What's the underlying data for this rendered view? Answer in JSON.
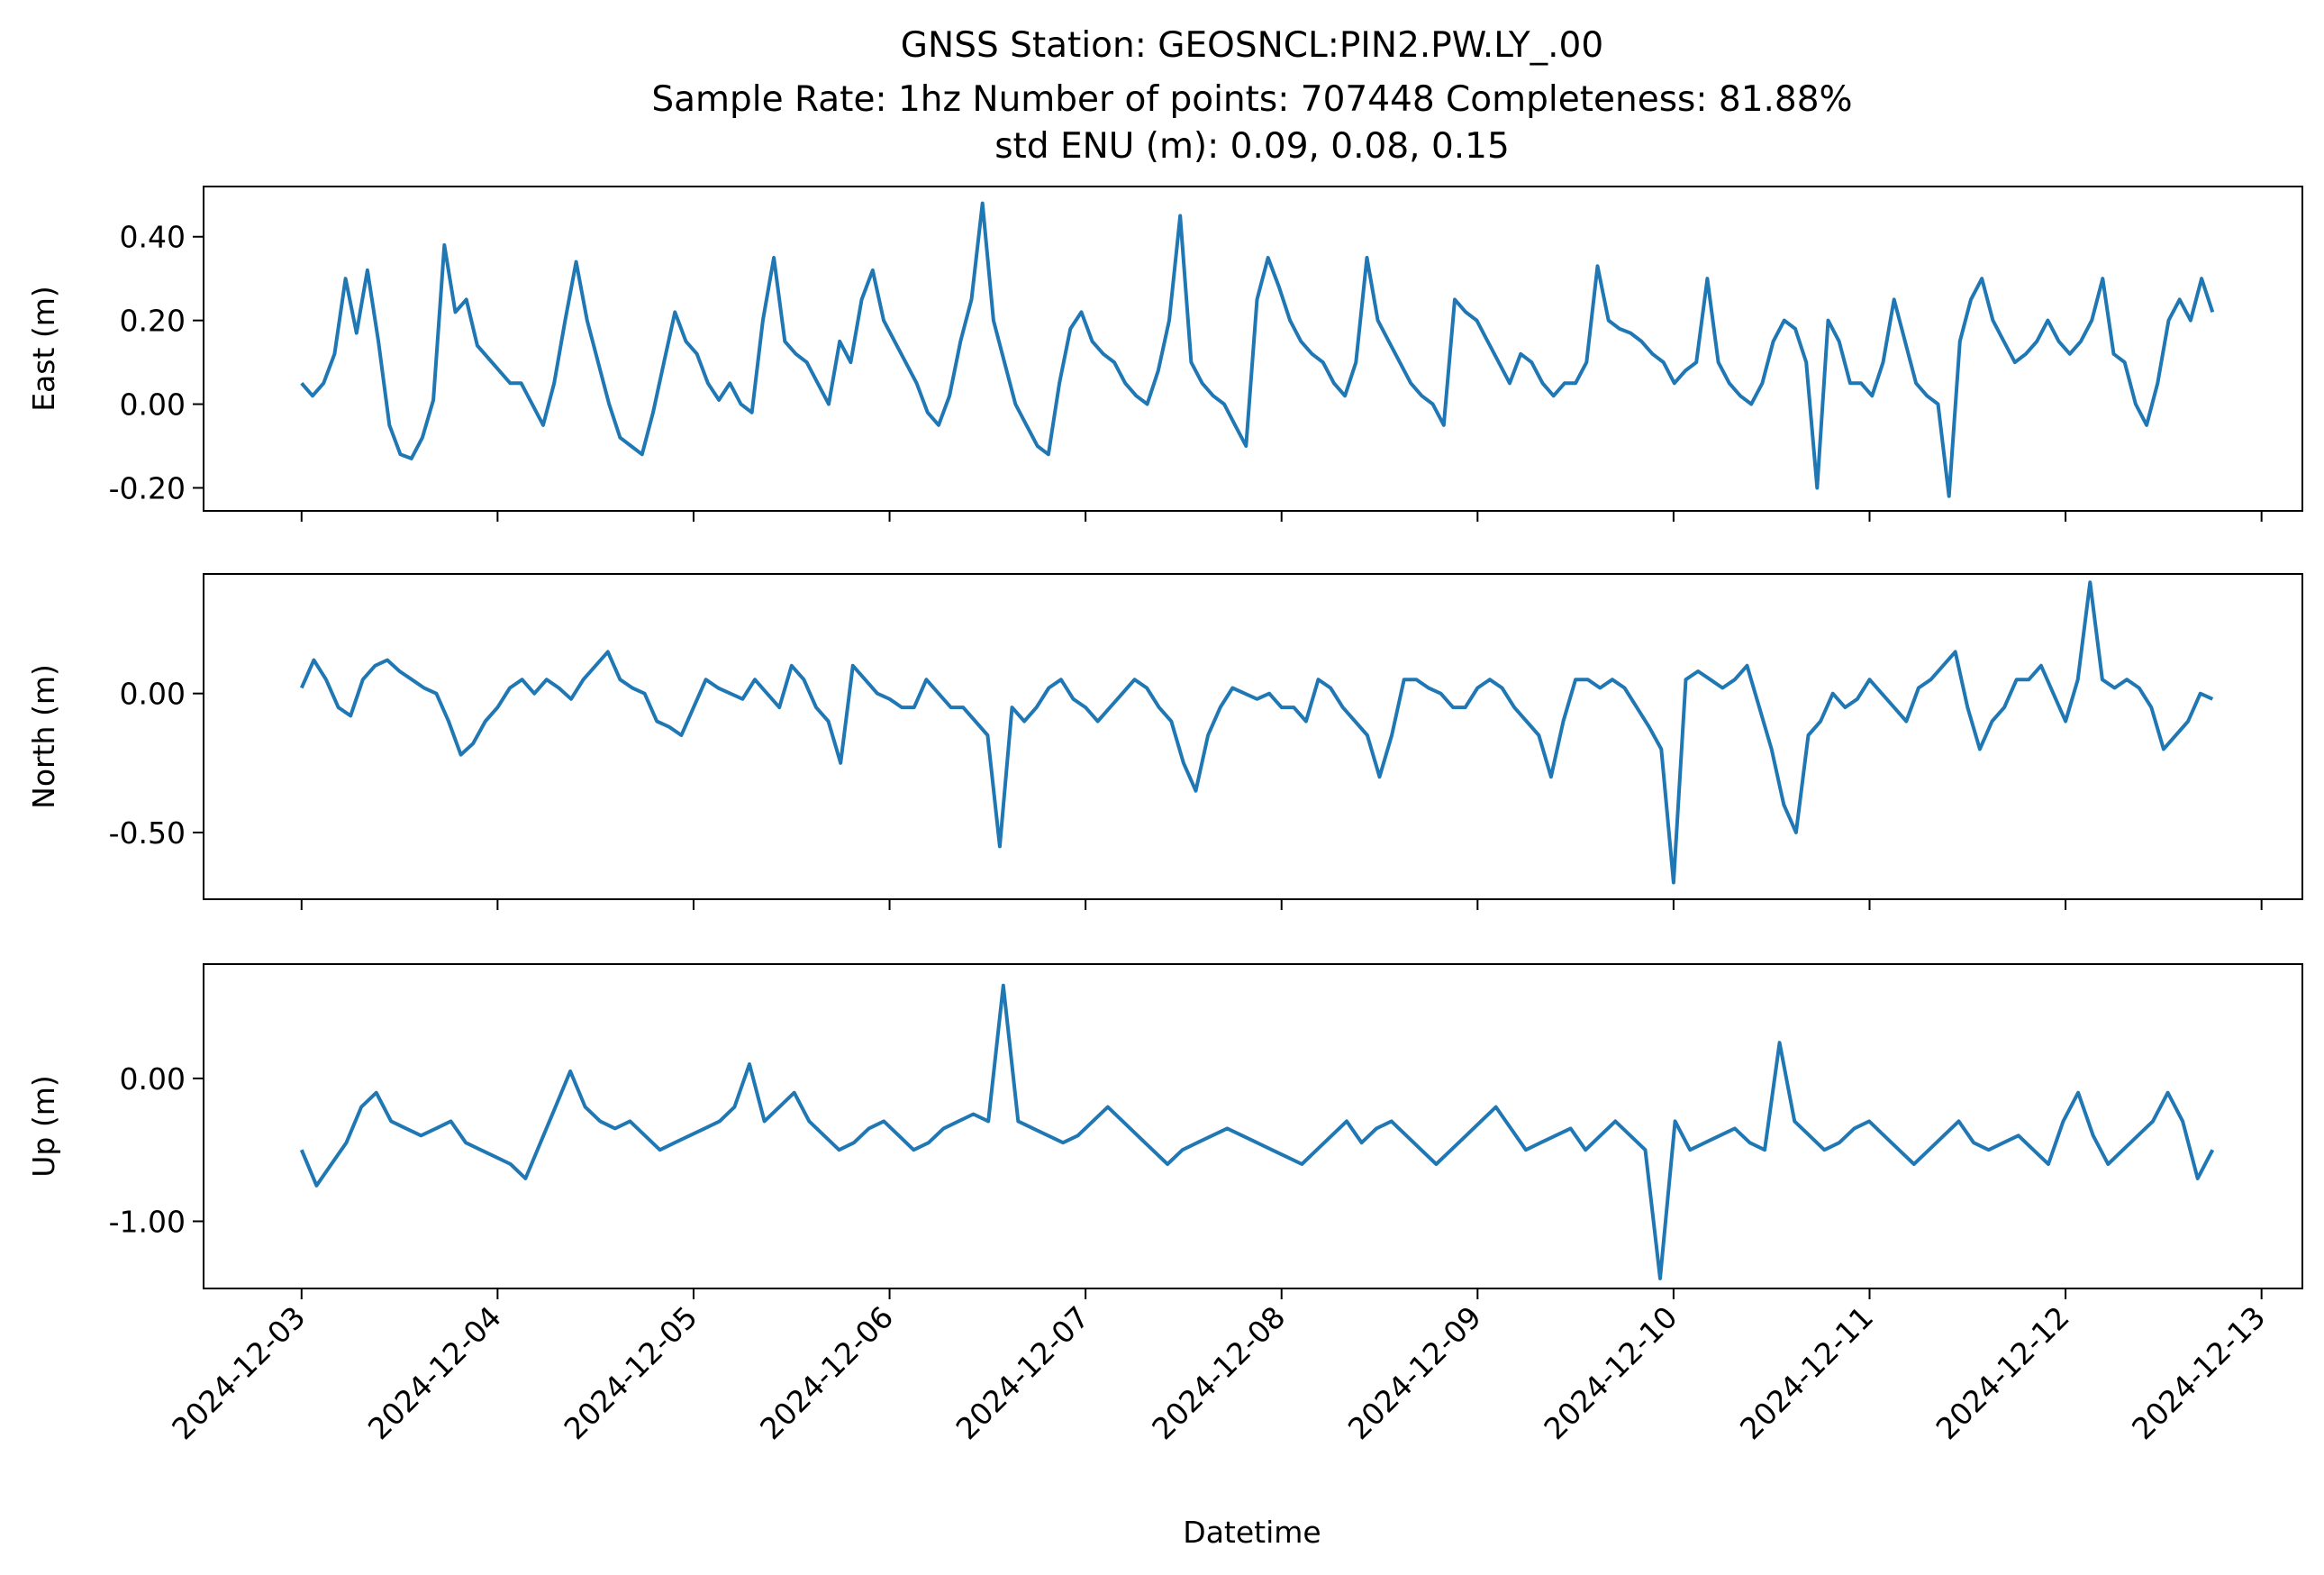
{
  "chart_data": {
    "type": "line",
    "title_lines": [
      "GNSS Station: GEOSNCL:PIN2.PW.LY_.00",
      "Sample Rate: 1hz   Number of points: 707448    Completeness:  81.88%",
      "std ENU (m):  0.09, 0.08, 0.15"
    ],
    "xlabel": "Datetime",
    "x_ticks": [
      "2024-12-03",
      "2024-12-04",
      "2024-12-05",
      "2024-12-06",
      "2024-12-07",
      "2024-12-08",
      "2024-12-09",
      "2024-12-10",
      "2024-12-11",
      "2024-12-12",
      "2024-12-13"
    ],
    "xlim": [
      "2024-12-02 12:00",
      "2024-12-13 05:00"
    ],
    "x_range": [
      "2024-12-03 00:00",
      "2024-12-12 18:00"
    ],
    "line_color": "#1f77b4",
    "legend": "none",
    "grid": false,
    "panels": [
      {
        "ylabel": "East (m)",
        "ylim": [
          -0.255,
          0.52
        ],
        "y_ticks": [
          0.4,
          0.2,
          0.0,
          -0.2
        ],
        "y_tick_labels": [
          "0.40",
          "0.20",
          "0.00",
          "-0.20"
        ],
        "values": [
          0.05,
          0.02,
          0.05,
          0.12,
          0.3,
          0.17,
          0.32,
          0.15,
          -0.05,
          -0.12,
          -0.13,
          -0.08,
          0.01,
          0.38,
          0.22,
          0.25,
          0.14,
          0.11,
          0.08,
          0.05,
          0.05,
          0.0,
          -0.05,
          0.05,
          0.2,
          0.34,
          0.2,
          0.1,
          0.0,
          -0.08,
          -0.1,
          -0.12,
          -0.02,
          0.1,
          0.22,
          0.15,
          0.12,
          0.05,
          0.01,
          0.05,
          0.0,
          -0.02,
          0.2,
          0.35,
          0.15,
          0.12,
          0.1,
          0.05,
          0.0,
          0.15,
          0.1,
          0.25,
          0.32,
          0.2,
          0.15,
          0.1,
          0.05,
          -0.02,
          -0.05,
          0.02,
          0.15,
          0.25,
          0.48,
          0.2,
          0.1,
          0.0,
          -0.05,
          -0.1,
          -0.12,
          0.05,
          0.18,
          0.22,
          0.15,
          0.12,
          0.1,
          0.05,
          0.02,
          0.0,
          0.08,
          0.2,
          0.45,
          0.1,
          0.05,
          0.02,
          0.0,
          -0.05,
          -0.1,
          0.25,
          0.35,
          0.28,
          0.2,
          0.15,
          0.12,
          0.1,
          0.05,
          0.02,
          0.1,
          0.35,
          0.2,
          0.15,
          0.1,
          0.05,
          0.02,
          0.0,
          -0.05,
          0.25,
          0.22,
          0.2,
          0.15,
          0.1,
          0.05,
          0.12,
          0.1,
          0.05,
          0.02,
          0.05,
          0.05,
          0.1,
          0.33,
          0.2,
          0.18,
          0.17,
          0.15,
          0.12,
          0.1,
          0.05,
          0.08,
          0.1,
          0.3,
          0.1,
          0.05,
          0.02,
          0.0,
          0.05,
          0.15,
          0.2,
          0.18,
          0.1,
          -0.2,
          0.2,
          0.15,
          0.05,
          0.05,
          0.02,
          0.1,
          0.25,
          0.15,
          0.05,
          0.02,
          0.0,
          -0.22,
          0.15,
          0.25,
          0.3,
          0.2,
          0.15,
          0.1,
          0.12,
          0.15,
          0.2,
          0.15,
          0.12,
          0.15,
          0.2,
          0.3,
          0.12,
          0.1,
          0.0,
          -0.05,
          0.05,
          0.2,
          0.25,
          0.2,
          0.3,
          0.22
        ]
      },
      {
        "ylabel": "North (m)",
        "ylim": [
          -0.74,
          0.43
        ],
        "y_ticks": [
          0.0,
          -0.5
        ],
        "y_tick_labels": [
          "0.00",
          "-0.50"
        ],
        "values": [
          0.02,
          0.12,
          0.05,
          -0.05,
          -0.08,
          0.05,
          0.1,
          0.12,
          0.08,
          0.05,
          0.02,
          0.0,
          -0.1,
          -0.22,
          -0.18,
          -0.1,
          -0.05,
          0.02,
          0.05,
          0.0,
          0.05,
          0.02,
          -0.02,
          0.05,
          0.1,
          0.15,
          0.05,
          0.02,
          0.0,
          -0.1,
          -0.12,
          -0.15,
          -0.05,
          0.05,
          0.02,
          0.0,
          -0.02,
          0.05,
          0.0,
          -0.05,
          0.1,
          0.05,
          -0.05,
          -0.1,
          -0.25,
          0.1,
          0.05,
          0.0,
          -0.02,
          -0.05,
          -0.05,
          0.05,
          0.0,
          -0.05,
          -0.05,
          -0.1,
          -0.15,
          -0.55,
          -0.05,
          -0.1,
          -0.05,
          0.02,
          0.05,
          -0.02,
          -0.05,
          -0.1,
          -0.05,
          0.0,
          0.05,
          0.02,
          -0.05,
          -0.1,
          -0.25,
          -0.35,
          -0.15,
          -0.05,
          0.02,
          0.0,
          -0.02,
          0.0,
          -0.05,
          -0.05,
          -0.1,
          0.05,
          0.02,
          -0.05,
          -0.1,
          -0.15,
          -0.3,
          -0.15,
          0.05,
          0.05,
          0.02,
          0.0,
          -0.05,
          -0.05,
          0.02,
          0.05,
          0.02,
          -0.05,
          -0.1,
          -0.15,
          -0.3,
          -0.1,
          0.05,
          0.05,
          0.02,
          0.05,
          0.02,
          -0.05,
          -0.12,
          -0.2,
          -0.68,
          0.05,
          0.08,
          0.05,
          0.02,
          0.05,
          0.1,
          -0.05,
          -0.2,
          -0.4,
          -0.5,
          -0.15,
          -0.1,
          0.0,
          -0.05,
          -0.02,
          0.05,
          0.0,
          -0.05,
          -0.1,
          0.02,
          0.05,
          0.1,
          0.15,
          -0.05,
          -0.2,
          -0.1,
          -0.05,
          0.05,
          0.05,
          0.1,
          0.0,
          -0.1,
          0.05,
          0.4,
          0.05,
          0.02,
          0.05,
          0.02,
          -0.05,
          -0.2,
          -0.15,
          -0.1,
          0.0,
          -0.02
        ]
      },
      {
        "ylabel": "Up (m)",
        "ylim": [
          -1.47,
          0.8
        ],
        "y_ticks": [
          0.0,
          -1.0
        ],
        "y_tick_labels": [
          "0.00",
          "-1.00"
        ],
        "values": [
          -0.5,
          -0.75,
          -0.6,
          -0.45,
          -0.2,
          -0.1,
          -0.3,
          -0.35,
          -0.4,
          -0.35,
          -0.3,
          -0.45,
          -0.5,
          -0.55,
          -0.6,
          -0.7,
          -0.45,
          -0.2,
          0.05,
          -0.2,
          -0.3,
          -0.35,
          -0.3,
          -0.4,
          -0.5,
          -0.45,
          -0.4,
          -0.35,
          -0.3,
          -0.2,
          0.1,
          -0.3,
          -0.2,
          -0.1,
          -0.3,
          -0.4,
          -0.5,
          -0.45,
          -0.35,
          -0.3,
          -0.4,
          -0.5,
          -0.45,
          -0.35,
          -0.3,
          -0.25,
          -0.3,
          0.65,
          -0.3,
          -0.35,
          -0.4,
          -0.45,
          -0.4,
          -0.3,
          -0.2,
          -0.3,
          -0.4,
          -0.5,
          -0.6,
          -0.5,
          -0.45,
          -0.4,
          -0.35,
          -0.4,
          -0.45,
          -0.5,
          -0.55,
          -0.6,
          -0.5,
          -0.4,
          -0.3,
          -0.45,
          -0.35,
          -0.3,
          -0.4,
          -0.5,
          -0.6,
          -0.5,
          -0.4,
          -0.3,
          -0.2,
          -0.35,
          -0.5,
          -0.45,
          -0.4,
          -0.35,
          -0.5,
          -0.4,
          -0.3,
          -0.4,
          -0.5,
          -1.4,
          -0.3,
          -0.5,
          -0.45,
          -0.4,
          -0.35,
          -0.45,
          -0.5,
          0.25,
          -0.3,
          -0.4,
          -0.5,
          -0.45,
          -0.35,
          -0.3,
          -0.4,
          -0.5,
          -0.6,
          -0.5,
          -0.4,
          -0.3,
          -0.45,
          -0.5,
          -0.45,
          -0.4,
          -0.5,
          -0.6,
          -0.3,
          -0.1,
          -0.4,
          -0.6,
          -0.5,
          -0.4,
          -0.3,
          -0.1,
          -0.3,
          -0.7,
          -0.5
        ]
      }
    ]
  }
}
